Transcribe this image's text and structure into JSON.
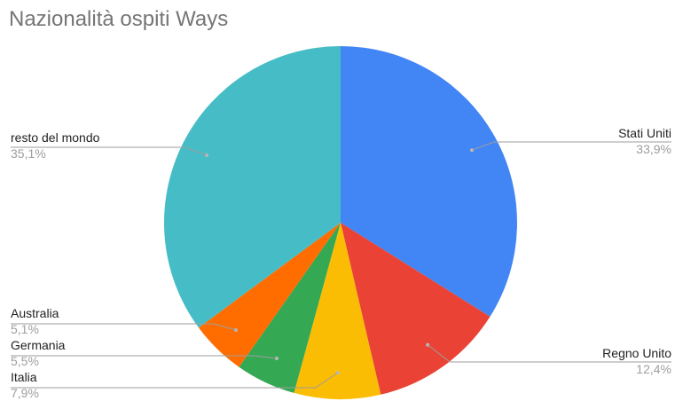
{
  "chart_data": {
    "type": "pie",
    "title": "Nazionalità ospiti Ways",
    "legend": "none",
    "slices": [
      {
        "label": "Stati Uniti",
        "value": 33.9,
        "value_label": "33,9%",
        "color": "#4285f4"
      },
      {
        "label": "Regno Unito",
        "value": 12.4,
        "value_label": "12,4%",
        "color": "#ea4335"
      },
      {
        "label": "Italia",
        "value": 7.9,
        "value_label": "7,9%",
        "color": "#fbbc04"
      },
      {
        "label": "Germania",
        "value": 5.5,
        "value_label": "5,5%",
        "color": "#34a853"
      },
      {
        "label": "Australia",
        "value": 5.1,
        "value_label": "5,1%",
        "color": "#ff6d01"
      },
      {
        "label": "resto del mondo",
        "value": 35.1,
        "value_label": "35,1%",
        "color": "#46bdc6"
      }
    ]
  }
}
